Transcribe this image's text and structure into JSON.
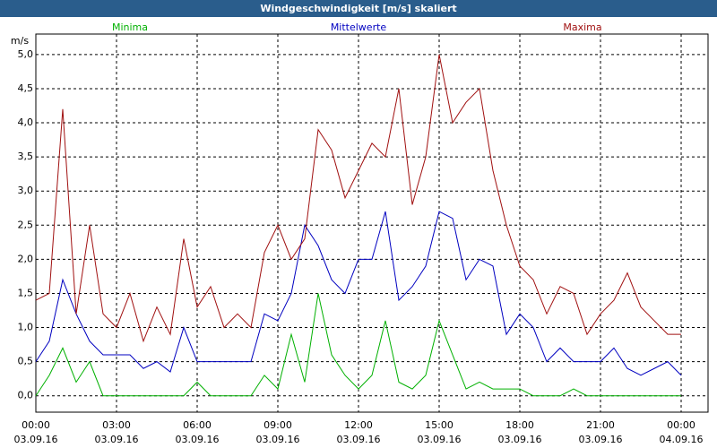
{
  "chart_data": {
    "type": "line",
    "title": "Windgeschwindigkeit [m/s] skaliert",
    "y_label": "m/s",
    "x": [
      0,
      0.5,
      1,
      1.5,
      2,
      2.5,
      3,
      3.5,
      4,
      4.5,
      5,
      5.5,
      6,
      6.5,
      7,
      7.5,
      8,
      8.5,
      9,
      9.5,
      10,
      10.5,
      11,
      11.5,
      12,
      12.5,
      13,
      13.5,
      14,
      14.5,
      15,
      15.5,
      16,
      16.5,
      17,
      17.5,
      18,
      18.5,
      19,
      19.5,
      20,
      20.5,
      21,
      21.5,
      22,
      22.5,
      23,
      23.5,
      24
    ],
    "series": [
      {
        "name": "Minima",
        "color": "#00b000",
        "values": [
          0,
          0.3,
          0.7,
          0.2,
          0.5,
          0,
          0,
          0,
          0,
          0,
          0,
          0,
          0.2,
          0,
          0,
          0,
          0,
          0.3,
          0.1,
          0.9,
          0.2,
          1.5,
          0.6,
          0.3,
          0.1,
          0.3,
          1.1,
          0.2,
          0.1,
          0.3,
          1.1,
          0.6,
          0.1,
          0.2,
          0.1,
          0.1,
          0.1,
          0,
          0,
          0,
          0.1,
          0,
          0,
          0,
          0,
          0,
          0,
          0,
          0
        ]
      },
      {
        "name": "Mittelwerte",
        "color": "#0000c0",
        "values": [
          0.5,
          0.8,
          1.7,
          1.2,
          0.8,
          0.6,
          0.6,
          0.6,
          0.4,
          0.5,
          0.35,
          1.0,
          0.5,
          0.5,
          0.5,
          0.5,
          0.5,
          1.2,
          1.1,
          1.5,
          2.5,
          2.2,
          1.7,
          1.5,
          2.0,
          2.0,
          2.7,
          1.4,
          1.6,
          1.9,
          2.7,
          2.6,
          1.7,
          2.0,
          1.9,
          0.9,
          1.2,
          1.0,
          0.5,
          0.7,
          0.5,
          0.5,
          0.5,
          0.7,
          0.4,
          0.3,
          0.4,
          0.5,
          0.3
        ]
      },
      {
        "name": "Maxima",
        "color": "#a01010",
        "values": [
          1.4,
          1.5,
          4.2,
          1.2,
          2.5,
          1.2,
          1.0,
          1.5,
          0.8,
          1.3,
          0.9,
          2.3,
          1.3,
          1.6,
          1.0,
          1.2,
          1.0,
          2.1,
          2.5,
          2.0,
          2.3,
          3.9,
          3.6,
          2.9,
          3.3,
          3.7,
          3.5,
          4.5,
          2.8,
          3.5,
          5.0,
          4.0,
          4.3,
          4.5,
          3.3,
          2.5,
          1.9,
          1.7,
          1.2,
          1.6,
          1.5,
          0.9,
          1.2,
          1.4,
          1.8,
          1.3,
          1.1,
          0.9,
          0.9
        ]
      }
    ],
    "xlim": [
      0,
      25
    ],
    "xticks": [
      {
        "value": 0,
        "label": "00:00",
        "date": "03.09.16"
      },
      {
        "value": 3,
        "label": "03:00",
        "date": "03.09.16"
      },
      {
        "value": 6,
        "label": "06:00",
        "date": "03.09.16"
      },
      {
        "value": 9,
        "label": "09:00",
        "date": "03.09.16"
      },
      {
        "value": 12,
        "label": "12:00",
        "date": "03.09.16"
      },
      {
        "value": 15,
        "label": "15:00",
        "date": "03.09.16"
      },
      {
        "value": 18,
        "label": "18:00",
        "date": "03.09.16"
      },
      {
        "value": 21,
        "label": "21:00",
        "date": "03.09.16"
      },
      {
        "value": 24,
        "label": "00:00",
        "date": "04.09.16"
      }
    ],
    "ylim": [
      -0.24,
      5.3
    ],
    "yticks": [
      {
        "value": 0,
        "label": "0,0"
      },
      {
        "value": 0.5,
        "label": "0,5"
      },
      {
        "value": 1,
        "label": "1,0"
      },
      {
        "value": 1.5,
        "label": "1,5"
      },
      {
        "value": 2,
        "label": "2,0"
      },
      {
        "value": 2.5,
        "label": "2,5"
      },
      {
        "value": 3,
        "label": "3,0"
      },
      {
        "value": 3.5,
        "label": "3,5"
      },
      {
        "value": 4,
        "label": "4,0"
      },
      {
        "value": 4.5,
        "label": "4,5"
      },
      {
        "value": 5,
        "label": "5,0"
      }
    ],
    "grid": true
  }
}
